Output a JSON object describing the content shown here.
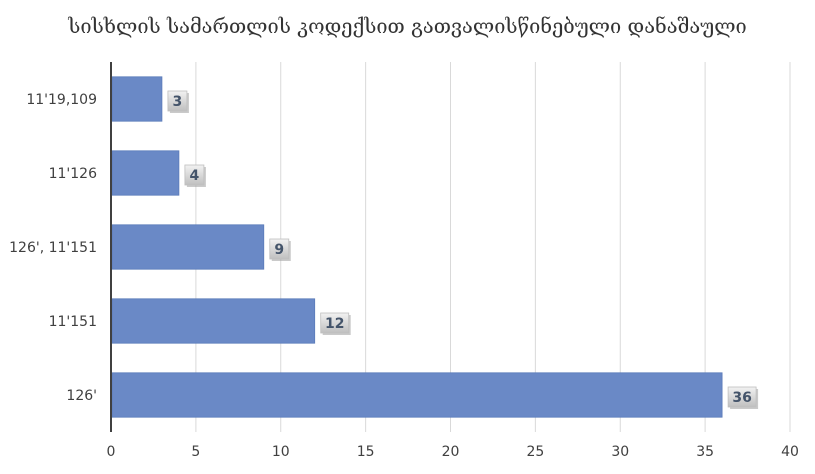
{
  "chart_data": {
    "type": "bar",
    "orientation": "horizontal",
    "title": "სისხლის სამართლის კოდექსით გათვალისწინებული დანაშაული",
    "categories": [
      "11'19,109",
      "11'126",
      "126', 11'151",
      "11'151",
      "126'"
    ],
    "values": [
      3,
      4,
      9,
      12,
      36
    ],
    "xlim": [
      0,
      40
    ],
    "x_ticks": [
      0,
      5,
      10,
      15,
      20,
      25,
      30,
      35,
      40
    ],
    "grid": true,
    "data_labels": true,
    "colors": {
      "bar": "#6A89C6",
      "bar_edge": "#5B7BB9",
      "grid": "#D9D9D9",
      "axis": "#404040",
      "label_box": "#D9D9D9"
    }
  }
}
